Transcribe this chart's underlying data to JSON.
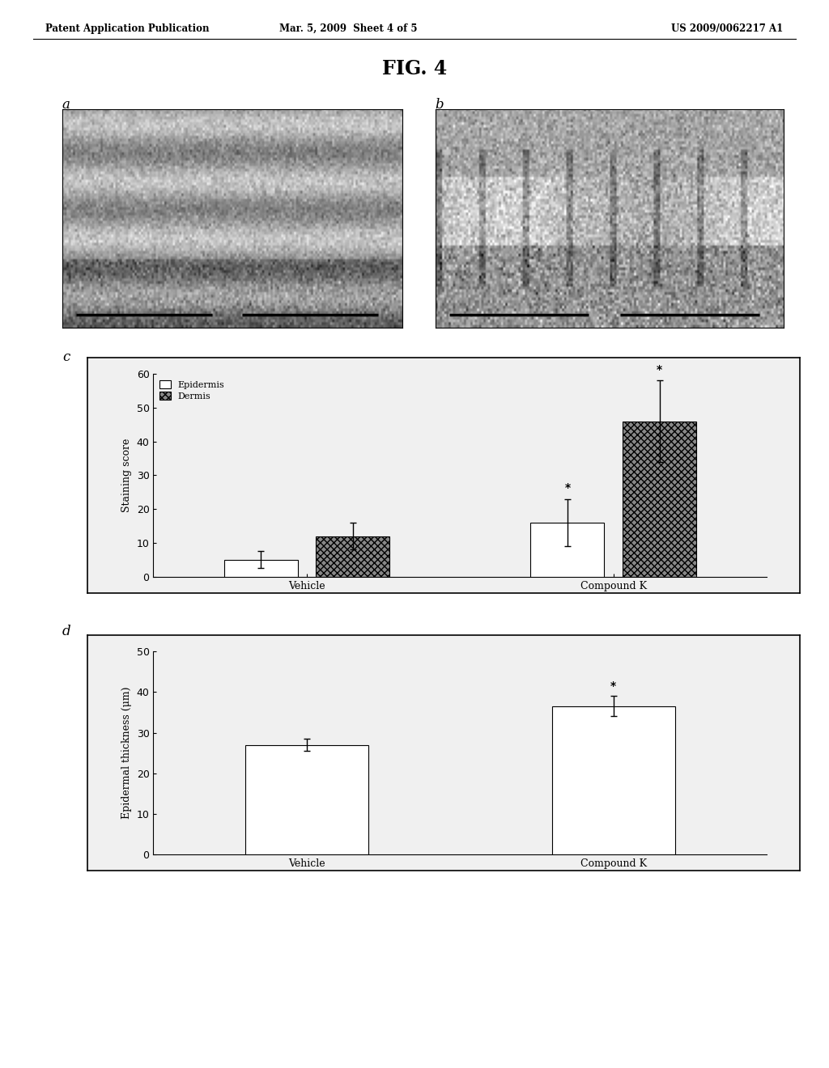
{
  "header_left": "Patent Application Publication",
  "header_center": "Mar. 5, 2009  Sheet 4 of 5",
  "header_right": "US 2009/0062217 A1",
  "fig_title": "FIG. 4",
  "panel_a_label": "a",
  "panel_b_label": "b",
  "panel_c_label": "c",
  "panel_d_label": "d",
  "chart_c": {
    "categories": [
      "Vehicle",
      "Compound K"
    ],
    "epidermis_values": [
      5.0,
      16.0
    ],
    "dermis_values": [
      12.0,
      46.0
    ],
    "epidermis_errors": [
      2.5,
      7.0
    ],
    "dermis_errors": [
      4.0,
      12.0
    ],
    "ylabel": "Staining score",
    "ylim": [
      0,
      60
    ],
    "yticks": [
      0,
      10,
      20,
      30,
      40,
      50,
      60
    ],
    "epidermis_color": "#ffffff",
    "dermis_color": "#888888",
    "legend_epidermis": "Epidermis",
    "legend_dermis": "Dermis"
  },
  "chart_d": {
    "categories": [
      "Vehicle",
      "Compound K"
    ],
    "values": [
      27.0,
      36.5
    ],
    "errors": [
      1.5,
      2.5
    ],
    "ylabel": "Epidermal thickness (μm)",
    "ylim": [
      0,
      50
    ],
    "yticks": [
      0,
      10,
      20,
      30,
      40,
      50
    ],
    "bar_color": "#ffffff"
  },
  "bg_color": "#ffffff",
  "border_color": "#000000",
  "text_color": "#000000"
}
